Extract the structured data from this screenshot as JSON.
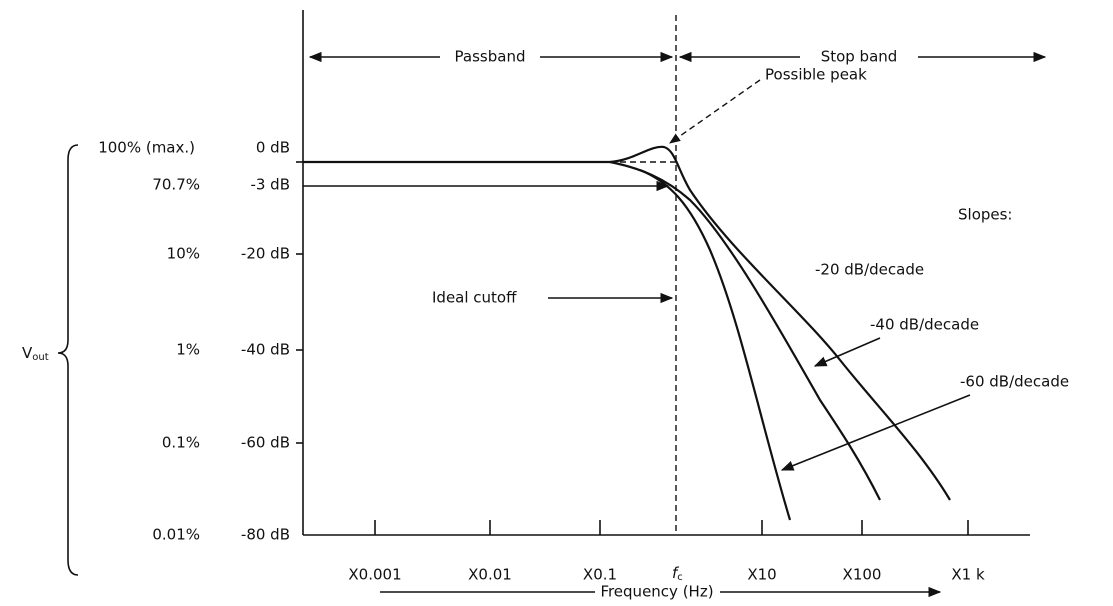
{
  "band_labels": {
    "passband": "Passband",
    "stopband": "Stop band"
  },
  "y_axis": {
    "label": {
      "main": "V",
      "sub": "out"
    },
    "percent_labels": [
      "100% (max.)",
      "70.7%",
      "10%",
      "1%",
      "0.1%",
      "0.01%"
    ],
    "db_labels": [
      "0 dB",
      "-3 dB",
      "-20 dB",
      "-40 dB",
      "-60 dB",
      "-80 dB"
    ]
  },
  "x_axis": {
    "label": "Frequency (Hz)",
    "tick_labels": [
      "X0.001",
      "X0.01",
      "X0.1",
      {
        "main": "f",
        "sub": "c"
      },
      "X10",
      "X100",
      "X1 k"
    ]
  },
  "annotations": {
    "possible_peak": "Possible peak",
    "ideal_cutoff": "Ideal cutoff",
    "slopes_title": "Slopes:",
    "slopes": [
      "-20 dB/decade",
      "-40 dB/decade",
      "-60 dB/decade"
    ]
  }
}
